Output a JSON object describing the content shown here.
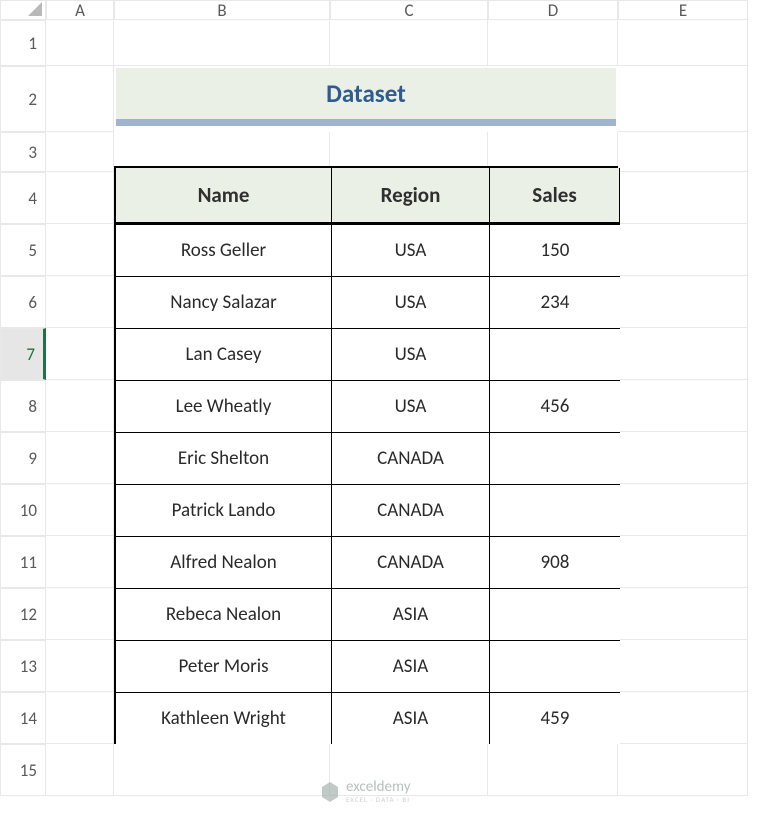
{
  "columns": [
    "A",
    "B",
    "C",
    "D",
    "E"
  ],
  "rows": [
    "1",
    "2",
    "3",
    "4",
    "5",
    "6",
    "7",
    "8",
    "9",
    "10",
    "11",
    "12",
    "13",
    "14",
    "15"
  ],
  "selectedRow": 7,
  "title": "Dataset",
  "titleColor": "#2f5b8f",
  "titleBg": "#eaf0e5",
  "titleUnderline": "#a0b4d0",
  "headers": [
    "Name",
    "Region",
    "Sales"
  ],
  "headerBg": "#eaf0e5",
  "data": [
    {
      "name": "Ross Geller",
      "region": "USA",
      "sales": "150"
    },
    {
      "name": "Nancy Salazar",
      "region": "USA",
      "sales": "234"
    },
    {
      "name": "Lan Casey",
      "region": "USA",
      "sales": ""
    },
    {
      "name": "Lee Wheatly",
      "region": "USA",
      "sales": "456"
    },
    {
      "name": "Eric Shelton",
      "region": "CANADA",
      "sales": ""
    },
    {
      "name": "Patrick Lando",
      "region": "CANADA",
      "sales": ""
    },
    {
      "name": "Alfred Nealon",
      "region": "CANADA",
      "sales": "908"
    },
    {
      "name": "Rebeca Nealon",
      "region": "ASIA",
      "sales": ""
    },
    {
      "name": "Peter Moris",
      "region": "ASIA",
      "sales": ""
    },
    {
      "name": "Kathleen Wright",
      "region": "ASIA",
      "sales": "459"
    }
  ],
  "watermark": {
    "brand": "exceldemy",
    "tag": "EXCEL · DATA · BI"
  }
}
